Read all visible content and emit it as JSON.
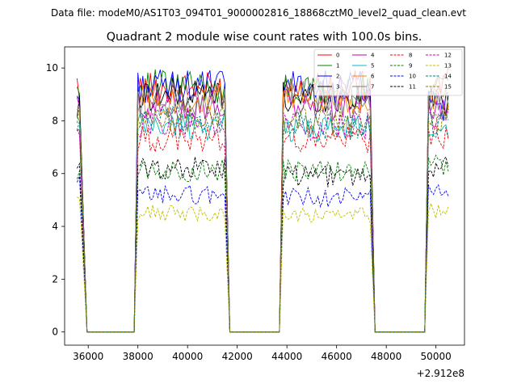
{
  "chart_data": {
    "type": "line",
    "suptitle": "Data file: modeM0/AS1T03_094T01_9000002816_18868cztM0_level2_quad_clean.evt",
    "title": "Quadrant 2 module wise count rates with 100.0s bins.",
    "xlabel": "",
    "ylabel": "",
    "x_offset_label": "+2.912e8",
    "xlim": [
      35050,
      51150
    ],
    "ylim": [
      -0.5,
      10.8
    ],
    "xticks": [
      36000,
      38000,
      40000,
      42000,
      44000,
      46000,
      48000,
      50000
    ],
    "xtick_labels": [
      "36000",
      "38000",
      "40000",
      "42000",
      "44000",
      "46000",
      "48000",
      "50000"
    ],
    "yticks": [
      0,
      2,
      4,
      6,
      8,
      10
    ],
    "ytick_labels": [
      "0",
      "2",
      "4",
      "6",
      "8",
      "10"
    ],
    "gaps": [
      {
        "drop_start": 35700,
        "zero_start": 35950,
        "zero_end": 37850,
        "rise_end": 38000
      },
      {
        "drop_start": 41500,
        "zero_start": 41700,
        "zero_end": 43700,
        "rise_end": 43850
      },
      {
        "drop_start": 47350,
        "zero_start": 47550,
        "zero_end": 49550,
        "rise_end": 49700
      }
    ],
    "segments": [
      [
        35550,
        35700
      ],
      [
        38000,
        41500
      ],
      [
        43850,
        47350
      ],
      [
        49700,
        50500
      ]
    ],
    "legend_location": "upper right",
    "series": [
      {
        "name": "0",
        "color": "#ff0000",
        "dash": "solid",
        "mean": 9.2,
        "segment_means": [
          9.3,
          9.2,
          9.3,
          9.4
        ]
      },
      {
        "name": "1",
        "color": "#008000",
        "dash": "solid",
        "mean": 9.3,
        "segment_means": [
          9.2,
          9.3,
          9.1,
          9.6
        ]
      },
      {
        "name": "2",
        "color": "#0000ff",
        "dash": "solid",
        "mean": 9.2,
        "segment_means": [
          9.0,
          9.3,
          9.3,
          8.5
        ]
      },
      {
        "name": "3",
        "color": "#000000",
        "dash": "solid",
        "mean": 9.0,
        "segment_means": [
          8.4,
          9.0,
          8.9,
          8.8
        ]
      },
      {
        "name": "4",
        "color": "#bf00bf",
        "dash": "solid",
        "mean": 8.6,
        "segment_means": [
          8.5,
          8.6,
          8.6,
          8.6
        ]
      },
      {
        "name": "5",
        "color": "#00bfbf",
        "dash": "solid",
        "mean": 7.8,
        "segment_means": [
          7.9,
          7.8,
          7.7,
          7.8
        ]
      },
      {
        "name": "6",
        "color": "#ff8c00",
        "dash": "solid",
        "mean": 8.8,
        "segment_means": [
          8.4,
          8.8,
          8.9,
          8.9
        ]
      },
      {
        "name": "7",
        "color": "#808080",
        "dash": "solid",
        "mean": 8.8,
        "segment_means": [
          8.4,
          8.7,
          8.9,
          8.8
        ]
      },
      {
        "name": "8",
        "color": "#ff0000",
        "dash": "dashed",
        "mean": 7.3,
        "segment_means": [
          7.6,
          7.3,
          7.3,
          7.4
        ]
      },
      {
        "name": "9",
        "color": "#008000",
        "dash": "dashed",
        "mean": 6.1,
        "segment_means": [
          6.2,
          6.1,
          6.1,
          6.3
        ]
      },
      {
        "name": "10",
        "color": "#0000ff",
        "dash": "dashed",
        "mean": 5.2,
        "segment_means": [
          5.6,
          5.2,
          5.1,
          5.4
        ]
      },
      {
        "name": "11",
        "color": "#000000",
        "dash": "dashed",
        "mean": 6.2,
        "segment_means": [
          6.1,
          6.2,
          5.9,
          6.2
        ]
      },
      {
        "name": "12",
        "color": "#bf00bf",
        "dash": "dashed",
        "mean": 7.9,
        "segment_means": [
          7.8,
          7.9,
          7.8,
          8.0
        ]
      },
      {
        "name": "13",
        "color": "#bfbf00",
        "dash": "dashed",
        "mean": 4.5,
        "segment_means": [
          4.9,
          4.5,
          4.4,
          4.6
        ]
      },
      {
        "name": "14",
        "color": "#008080",
        "dash": "dashed",
        "mean": 8.0,
        "segment_means": [
          7.8,
          8.0,
          7.8,
          7.9
        ]
      },
      {
        "name": "15",
        "color": "#808000",
        "dash": "dashed",
        "mean": 8.1,
        "segment_means": [
          8.0,
          8.1,
          8.0,
          8.2
        ]
      }
    ]
  }
}
